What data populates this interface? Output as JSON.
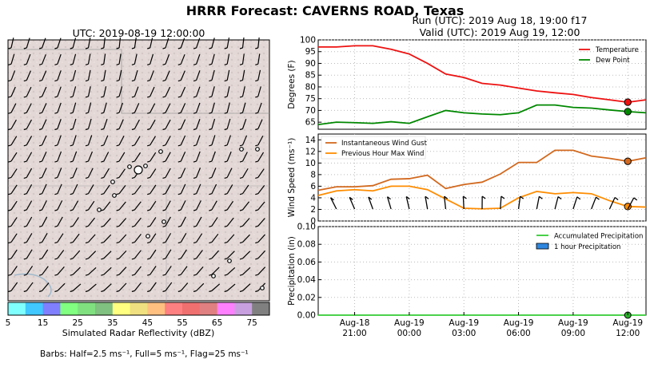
{
  "header": {
    "title": "HRRR Forecast: CAVERNS ROAD, Texas",
    "run": "Run (UTC): 2019 Aug 18, 19:00 f17",
    "valid": "Valid (UTC): 2019 Aug 19, 12:00"
  },
  "map": {
    "title": "UTC: 2019-08-19 12:00:00",
    "colorbar_label": "Simulated Radar Reflectivity (dBZ)",
    "colorbar_ticks": [
      "5",
      "15",
      "25",
      "35",
      "45",
      "55",
      "65",
      "75"
    ],
    "colorbar_colors": [
      "#80ffff",
      "#40c8ff",
      "#8080ff",
      "#80ff80",
      "#80e080",
      "#80c080",
      "#ffff80",
      "#f0e080",
      "#ffc080",
      "#ff8080",
      "#f07070",
      "#e08080",
      "#ff80ff",
      "#c8a0e0",
      "#808080"
    ],
    "barbs_note": "Barbs: Half=2.5 ms⁻¹, Full=5 ms⁻¹, Flag=25 ms⁻¹"
  },
  "chart_data": [
    {
      "type": "line",
      "x": [
        "Aug-18 19:00",
        "Aug-18 20:00",
        "Aug-18 21:00",
        "Aug-18 22:00",
        "Aug-18 23:00",
        "Aug-19 00:00",
        "Aug-19 01:00",
        "Aug-19 02:00",
        "Aug-19 03:00",
        "Aug-19 04:00",
        "Aug-19 05:00",
        "Aug-19 06:00",
        "Aug-19 07:00",
        "Aug-19 08:00",
        "Aug-19 09:00",
        "Aug-19 10:00",
        "Aug-19 11:00",
        "Aug-19 12:00",
        "Aug-19 13:00"
      ],
      "series": [
        {
          "name": "Temperature",
          "color": "#ee1111",
          "values": [
            97,
            97,
            97.5,
            97.5,
            96,
            94,
            90,
            85.5,
            84,
            81.5,
            80.8,
            79.5,
            78.3,
            77.5,
            76.8,
            75.5,
            74.5,
            73.5,
            74.5
          ]
        },
        {
          "name": "Dew Point",
          "color": "#008800",
          "values": [
            64,
            65,
            64.8,
            64.5,
            65.2,
            64.5,
            67.3,
            70,
            69,
            68.5,
            68.2,
            69,
            72.3,
            72.3,
            71.3,
            71,
            70.2,
            69.5,
            69
          ]
        }
      ],
      "ylabel": "Degrees (F)",
      "ylim": [
        62,
        100
      ],
      "yticks": [
        "65",
        "70",
        "75",
        "80",
        "85",
        "90",
        "95",
        "100"
      ],
      "legend": "top-right",
      "grid": true
    },
    {
      "type": "line",
      "x": [
        "Aug-18 19:00",
        "Aug-18 20:00",
        "Aug-18 21:00",
        "Aug-18 22:00",
        "Aug-18 23:00",
        "Aug-19 00:00",
        "Aug-19 01:00",
        "Aug-19 02:00",
        "Aug-19 03:00",
        "Aug-19 04:00",
        "Aug-19 05:00",
        "Aug-19 06:00",
        "Aug-19 07:00",
        "Aug-19 08:00",
        "Aug-19 09:00",
        "Aug-19 10:00",
        "Aug-19 11:00",
        "Aug-19 12:00",
        "Aug-19 13:00"
      ],
      "series": [
        {
          "name": "Instantaneous Wind Gust",
          "color": "#d2691e",
          "values": [
            5.3,
            5.9,
            5.9,
            6.1,
            7.2,
            7.3,
            7.9,
            5.6,
            6.3,
            6.7,
            8.1,
            10.1,
            10.1,
            12.2,
            12.2,
            11.2,
            10.8,
            10.3,
            10.9
          ]
        },
        {
          "name": "Previous Hour Max Wind",
          "color": "#ff8c00",
          "values": [
            4.4,
            5.2,
            5.4,
            5.2,
            6.0,
            6.0,
            5.4,
            3.8,
            2.2,
            2.1,
            2.2,
            4.0,
            5.1,
            4.7,
            4.9,
            4.7,
            3.5,
            2.5,
            2.4
          ]
        }
      ],
      "ylabel": "Wind Speed (ms⁻¹)",
      "ylim": [
        0,
        15
      ],
      "yticks": [
        "0",
        "2",
        "4",
        "6",
        "8",
        "10",
        "12",
        "14"
      ],
      "legend": "top-left",
      "grid": true
    },
    {
      "type": "bar",
      "x": [
        "Aug-18 19:00",
        "Aug-18 20:00",
        "Aug-18 21:00",
        "Aug-18 22:00",
        "Aug-18 23:00",
        "Aug-19 00:00",
        "Aug-19 01:00",
        "Aug-19 02:00",
        "Aug-19 03:00",
        "Aug-19 04:00",
        "Aug-19 05:00",
        "Aug-19 06:00",
        "Aug-19 07:00",
        "Aug-19 08:00",
        "Aug-19 09:00",
        "Aug-19 10:00",
        "Aug-19 11:00",
        "Aug-19 12:00",
        "Aug-19 13:00"
      ],
      "series": [
        {
          "name": "Accumulated Precipitation",
          "color": "#33cc33",
          "values": [
            0,
            0,
            0,
            0,
            0,
            0,
            0,
            0,
            0,
            0,
            0,
            0,
            0,
            0,
            0,
            0,
            0,
            0,
            0
          ]
        },
        {
          "name": "1 hour Precipitation",
          "color": "#2e86de",
          "values": [
            0,
            0,
            0,
            0,
            0,
            0,
            0,
            0,
            0,
            0,
            0,
            0,
            0,
            0,
            0,
            0,
            0,
            0,
            0
          ]
        }
      ],
      "ylabel": "Precipitation (in)",
      "ylim": [
        0,
        0.1
      ],
      "yticks": [
        "0.00",
        "0.02",
        "0.04",
        "0.06",
        "0.08",
        "0.10"
      ],
      "xticks": [
        [
          "Aug-18",
          "21:00"
        ],
        [
          "Aug-19",
          "00:00"
        ],
        [
          "Aug-19",
          "03:00"
        ],
        [
          "Aug-19",
          "06:00"
        ],
        [
          "Aug-19",
          "09:00"
        ],
        [
          "Aug-19",
          "12:00"
        ]
      ],
      "legend": "top-right",
      "grid": true
    }
  ]
}
